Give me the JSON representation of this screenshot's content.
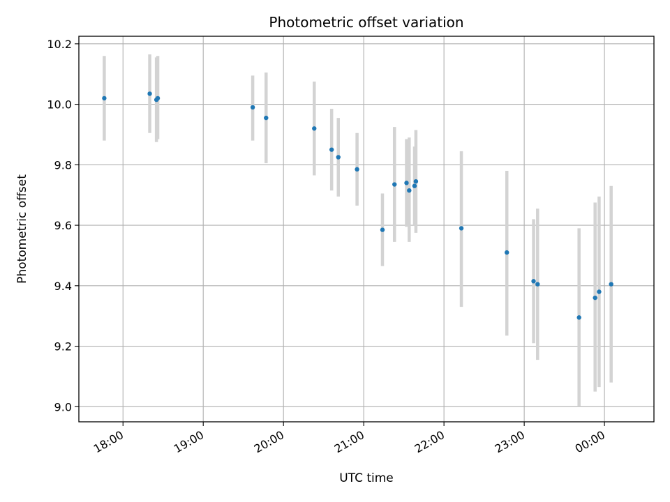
{
  "chart_data": {
    "type": "scatter",
    "title": "Photometric offset variation",
    "xlabel": "UTC time",
    "ylabel": "Photometric offset",
    "x_axis_type": "time",
    "xlim": [
      "17:27",
      "00:37"
    ],
    "ylim": [
      8.95,
      10.225
    ],
    "grid": true,
    "xticks": [
      {
        "value": "18:00",
        "label": "18:00"
      },
      {
        "value": "19:00",
        "label": "19:00"
      },
      {
        "value": "20:00",
        "label": "20:00"
      },
      {
        "value": "21:00",
        "label": "21:00"
      },
      {
        "value": "22:00",
        "label": "22:00"
      },
      {
        "value": "23:00",
        "label": "23:00"
      },
      {
        "value": "00:00",
        "label": "00:00"
      }
    ],
    "yticks": [
      {
        "value": 9.0,
        "label": "9.0"
      },
      {
        "value": 9.2,
        "label": "9.2"
      },
      {
        "value": 9.4,
        "label": "9.4"
      },
      {
        "value": 9.6,
        "label": "9.6"
      },
      {
        "value": 9.8,
        "label": "9.8"
      },
      {
        "value": 10.0,
        "label": "10.0"
      },
      {
        "value": 10.2,
        "label": "10.2"
      }
    ],
    "series": [
      {
        "marker_color": "#1f77b4",
        "errorbar_color": "#d3d3d3",
        "points": [
          {
            "x": "17:46",
            "y": 10.02,
            "yerr_low": 9.88,
            "yerr_high": 10.16
          },
          {
            "x": "18:20",
            "y": 10.035,
            "yerr_low": 9.905,
            "yerr_high": 10.165
          },
          {
            "x": "18:25",
            "y": 10.015,
            "yerr_low": 9.875,
            "yerr_high": 10.155
          },
          {
            "x": "18:26",
            "y": 10.02,
            "yerr_low": 9.885,
            "yerr_high": 10.16
          },
          {
            "x": "19:37",
            "y": 9.99,
            "yerr_low": 9.88,
            "yerr_high": 10.095
          },
          {
            "x": "19:47",
            "y": 9.955,
            "yerr_low": 9.805,
            "yerr_high": 10.105
          },
          {
            "x": "20:23",
            "y": 9.92,
            "yerr_low": 9.765,
            "yerr_high": 10.075
          },
          {
            "x": "20:36",
            "y": 9.85,
            "yerr_low": 9.715,
            "yerr_high": 9.985
          },
          {
            "x": "20:41",
            "y": 9.825,
            "yerr_low": 9.695,
            "yerr_high": 9.955
          },
          {
            "x": "20:55",
            "y": 9.785,
            "yerr_low": 9.665,
            "yerr_high": 9.905
          },
          {
            "x": "21:14",
            "y": 9.585,
            "yerr_low": 9.465,
            "yerr_high": 9.705
          },
          {
            "x": "21:23",
            "y": 9.735,
            "yerr_low": 9.545,
            "yerr_high": 9.925
          },
          {
            "x": "21:32",
            "y": 9.74,
            "yerr_low": 9.595,
            "yerr_high": 9.885
          },
          {
            "x": "21:34",
            "y": 9.715,
            "yerr_low": 9.545,
            "yerr_high": 9.89
          },
          {
            "x": "21:38",
            "y": 9.73,
            "yerr_low": 9.6,
            "yerr_high": 9.86
          },
          {
            "x": "21:39",
            "y": 9.745,
            "yerr_low": 9.575,
            "yerr_high": 9.915
          },
          {
            "x": "22:13",
            "y": 9.59,
            "yerr_low": 9.33,
            "yerr_high": 9.845
          },
          {
            "x": "22:47",
            "y": 9.51,
            "yerr_low": 9.235,
            "yerr_high": 9.78
          },
          {
            "x": "23:07",
            "y": 9.415,
            "yerr_low": 9.21,
            "yerr_high": 9.62
          },
          {
            "x": "23:10",
            "y": 9.405,
            "yerr_low": 9.155,
            "yerr_high": 9.655
          },
          {
            "x": "23:41",
            "y": 9.295,
            "yerr_low": 9.0,
            "yerr_high": 9.59
          },
          {
            "x": "23:53",
            "y": 9.36,
            "yerr_low": 9.05,
            "yerr_high": 9.675
          },
          {
            "x": "23:56",
            "y": 9.38,
            "yerr_low": 9.065,
            "yerr_high": 9.695
          },
          {
            "x": "00:05",
            "y": 9.405,
            "yerr_low": 9.08,
            "yerr_high": 9.73
          }
        ]
      }
    ]
  }
}
